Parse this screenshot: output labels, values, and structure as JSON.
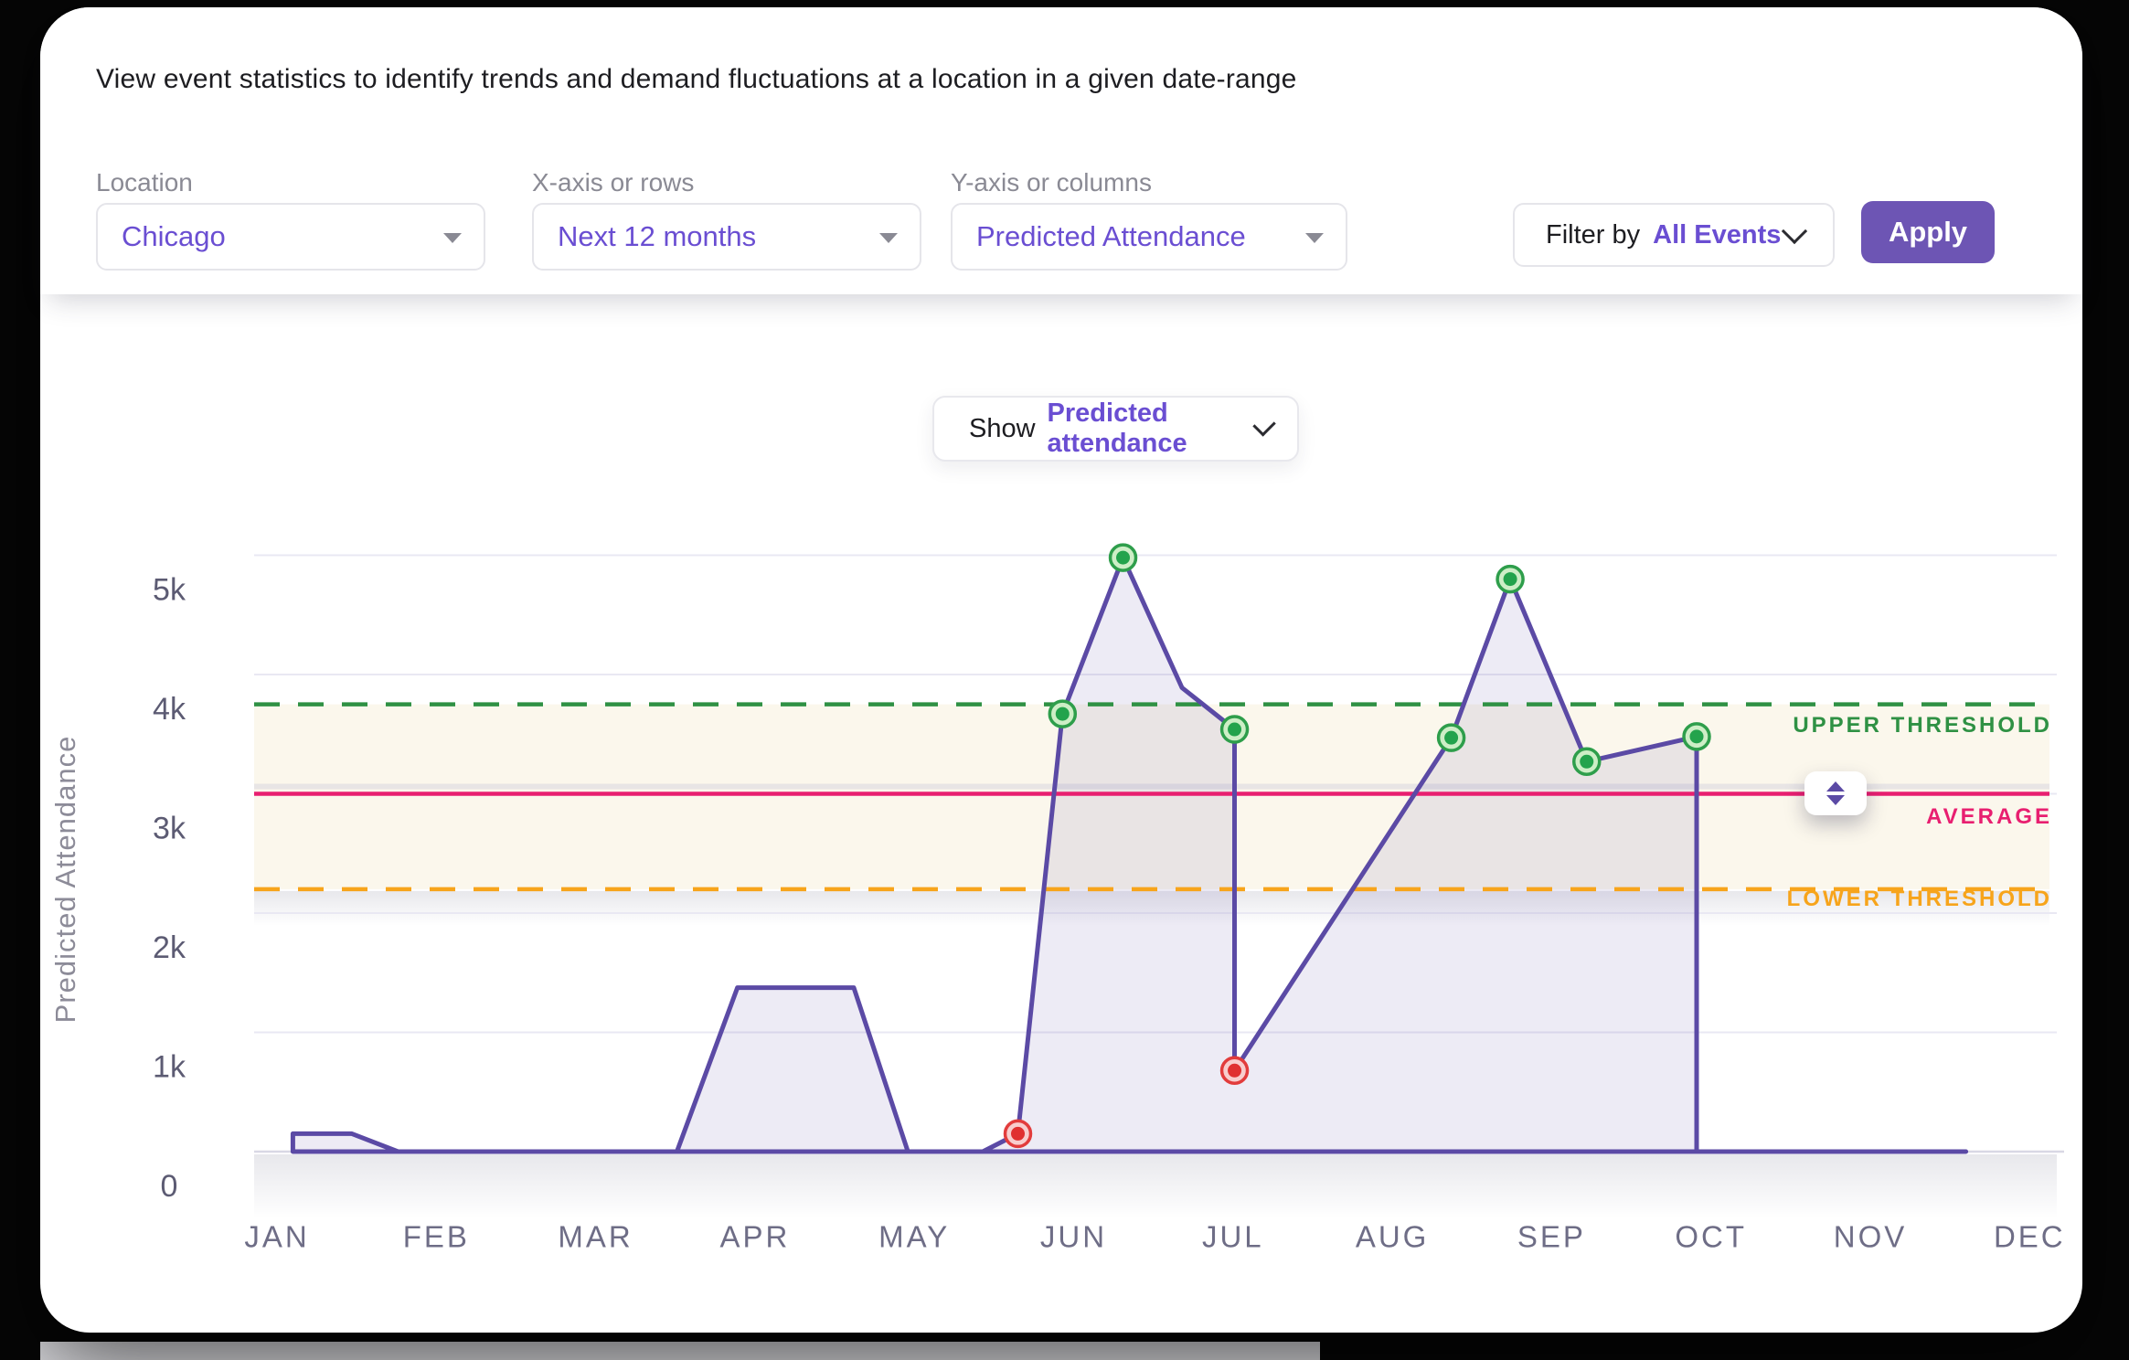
{
  "header": {
    "description": "View event statistics to identify trends and demand fluctuations at a location in a given date-range",
    "controls": [
      {
        "label": "Location",
        "value": "Chicago"
      },
      {
        "label": "X-axis or rows",
        "value": "Next 12 months"
      },
      {
        "label": "Y-axis or columns",
        "value": "Predicted Attendance"
      }
    ],
    "filter": {
      "prefix": "Filter by",
      "value": "All Events"
    },
    "apply_label": "Apply"
  },
  "toolbar": {
    "show_prefix": "Show",
    "show_value": "Predicted attendance"
  },
  "chart_data": {
    "type": "area",
    "title": "",
    "xlabel": "",
    "ylabel": "Predicted Attendance",
    "x_categories": [
      "JAN",
      "FEB",
      "MAR",
      "APR",
      "MAY",
      "JUN",
      "JUL",
      "AUG",
      "SEP",
      "OCT",
      "NOV",
      "DEC"
    ],
    "y_ticks": [
      "0",
      "1k",
      "2k",
      "3k",
      "4k",
      "5k"
    ],
    "ylim": [
      0,
      5400
    ],
    "grid": true,
    "legend": "none",
    "annotations": {
      "upper_threshold": {
        "label": "UPPER THRESHOLD",
        "value": 3750,
        "color": "#2f9144",
        "style": "dashed"
      },
      "average": {
        "label": "AVERAGE",
        "value": 3000,
        "color": "#e81f70",
        "style": "solid"
      },
      "lower_threshold": {
        "label": "LOWER THRESHOLD",
        "value": 2200,
        "color": "#f7a41b",
        "style": "dashed"
      }
    },
    "series": [
      {
        "name": "Predicted attendance",
        "line_color": "#5b4aa5",
        "fill_color": "#6757ae",
        "points": [
          {
            "m": 0.1,
            "v": 0
          },
          {
            "m": 0.1,
            "v": 150
          },
          {
            "m": 0.47,
            "v": 150
          },
          {
            "m": 0.76,
            "v": 0
          },
          {
            "m": 2.51,
            "v": 0
          },
          {
            "m": 2.89,
            "v": 1375
          },
          {
            "m": 3.62,
            "v": 1375
          },
          {
            "m": 3.96,
            "v": 0
          },
          {
            "m": 4.43,
            "v": 0
          },
          {
            "m": 4.65,
            "v": 150,
            "dot": "red"
          },
          {
            "m": 4.93,
            "v": 3670,
            "dot": "green"
          },
          {
            "m": 5.31,
            "v": 4980,
            "dot": "green"
          },
          {
            "m": 5.68,
            "v": 3890
          },
          {
            "m": 6.01,
            "v": 3540,
            "dot": "green"
          },
          {
            "m": 6.01,
            "v": 680,
            "dot": "red"
          },
          {
            "m": 7.37,
            "v": 3470,
            "dot": "green"
          },
          {
            "m": 7.74,
            "v": 4800,
            "dot": "green"
          },
          {
            "m": 8.22,
            "v": 3270,
            "dot": "green"
          },
          {
            "m": 8.91,
            "v": 3480,
            "dot": "green"
          },
          {
            "m": 8.91,
            "v": 0
          },
          {
            "m": 10.6,
            "v": 0
          }
        ]
      }
    ],
    "dot_colors": {
      "green": {
        "center": "#23a34c",
        "ring_fill": "#cdeec6",
        "ring_stroke": "#2e9e4b"
      },
      "red": {
        "center": "#e03030",
        "ring_fill": "#f8cdcd",
        "ring_stroke": "#e23c3c"
      }
    }
  }
}
